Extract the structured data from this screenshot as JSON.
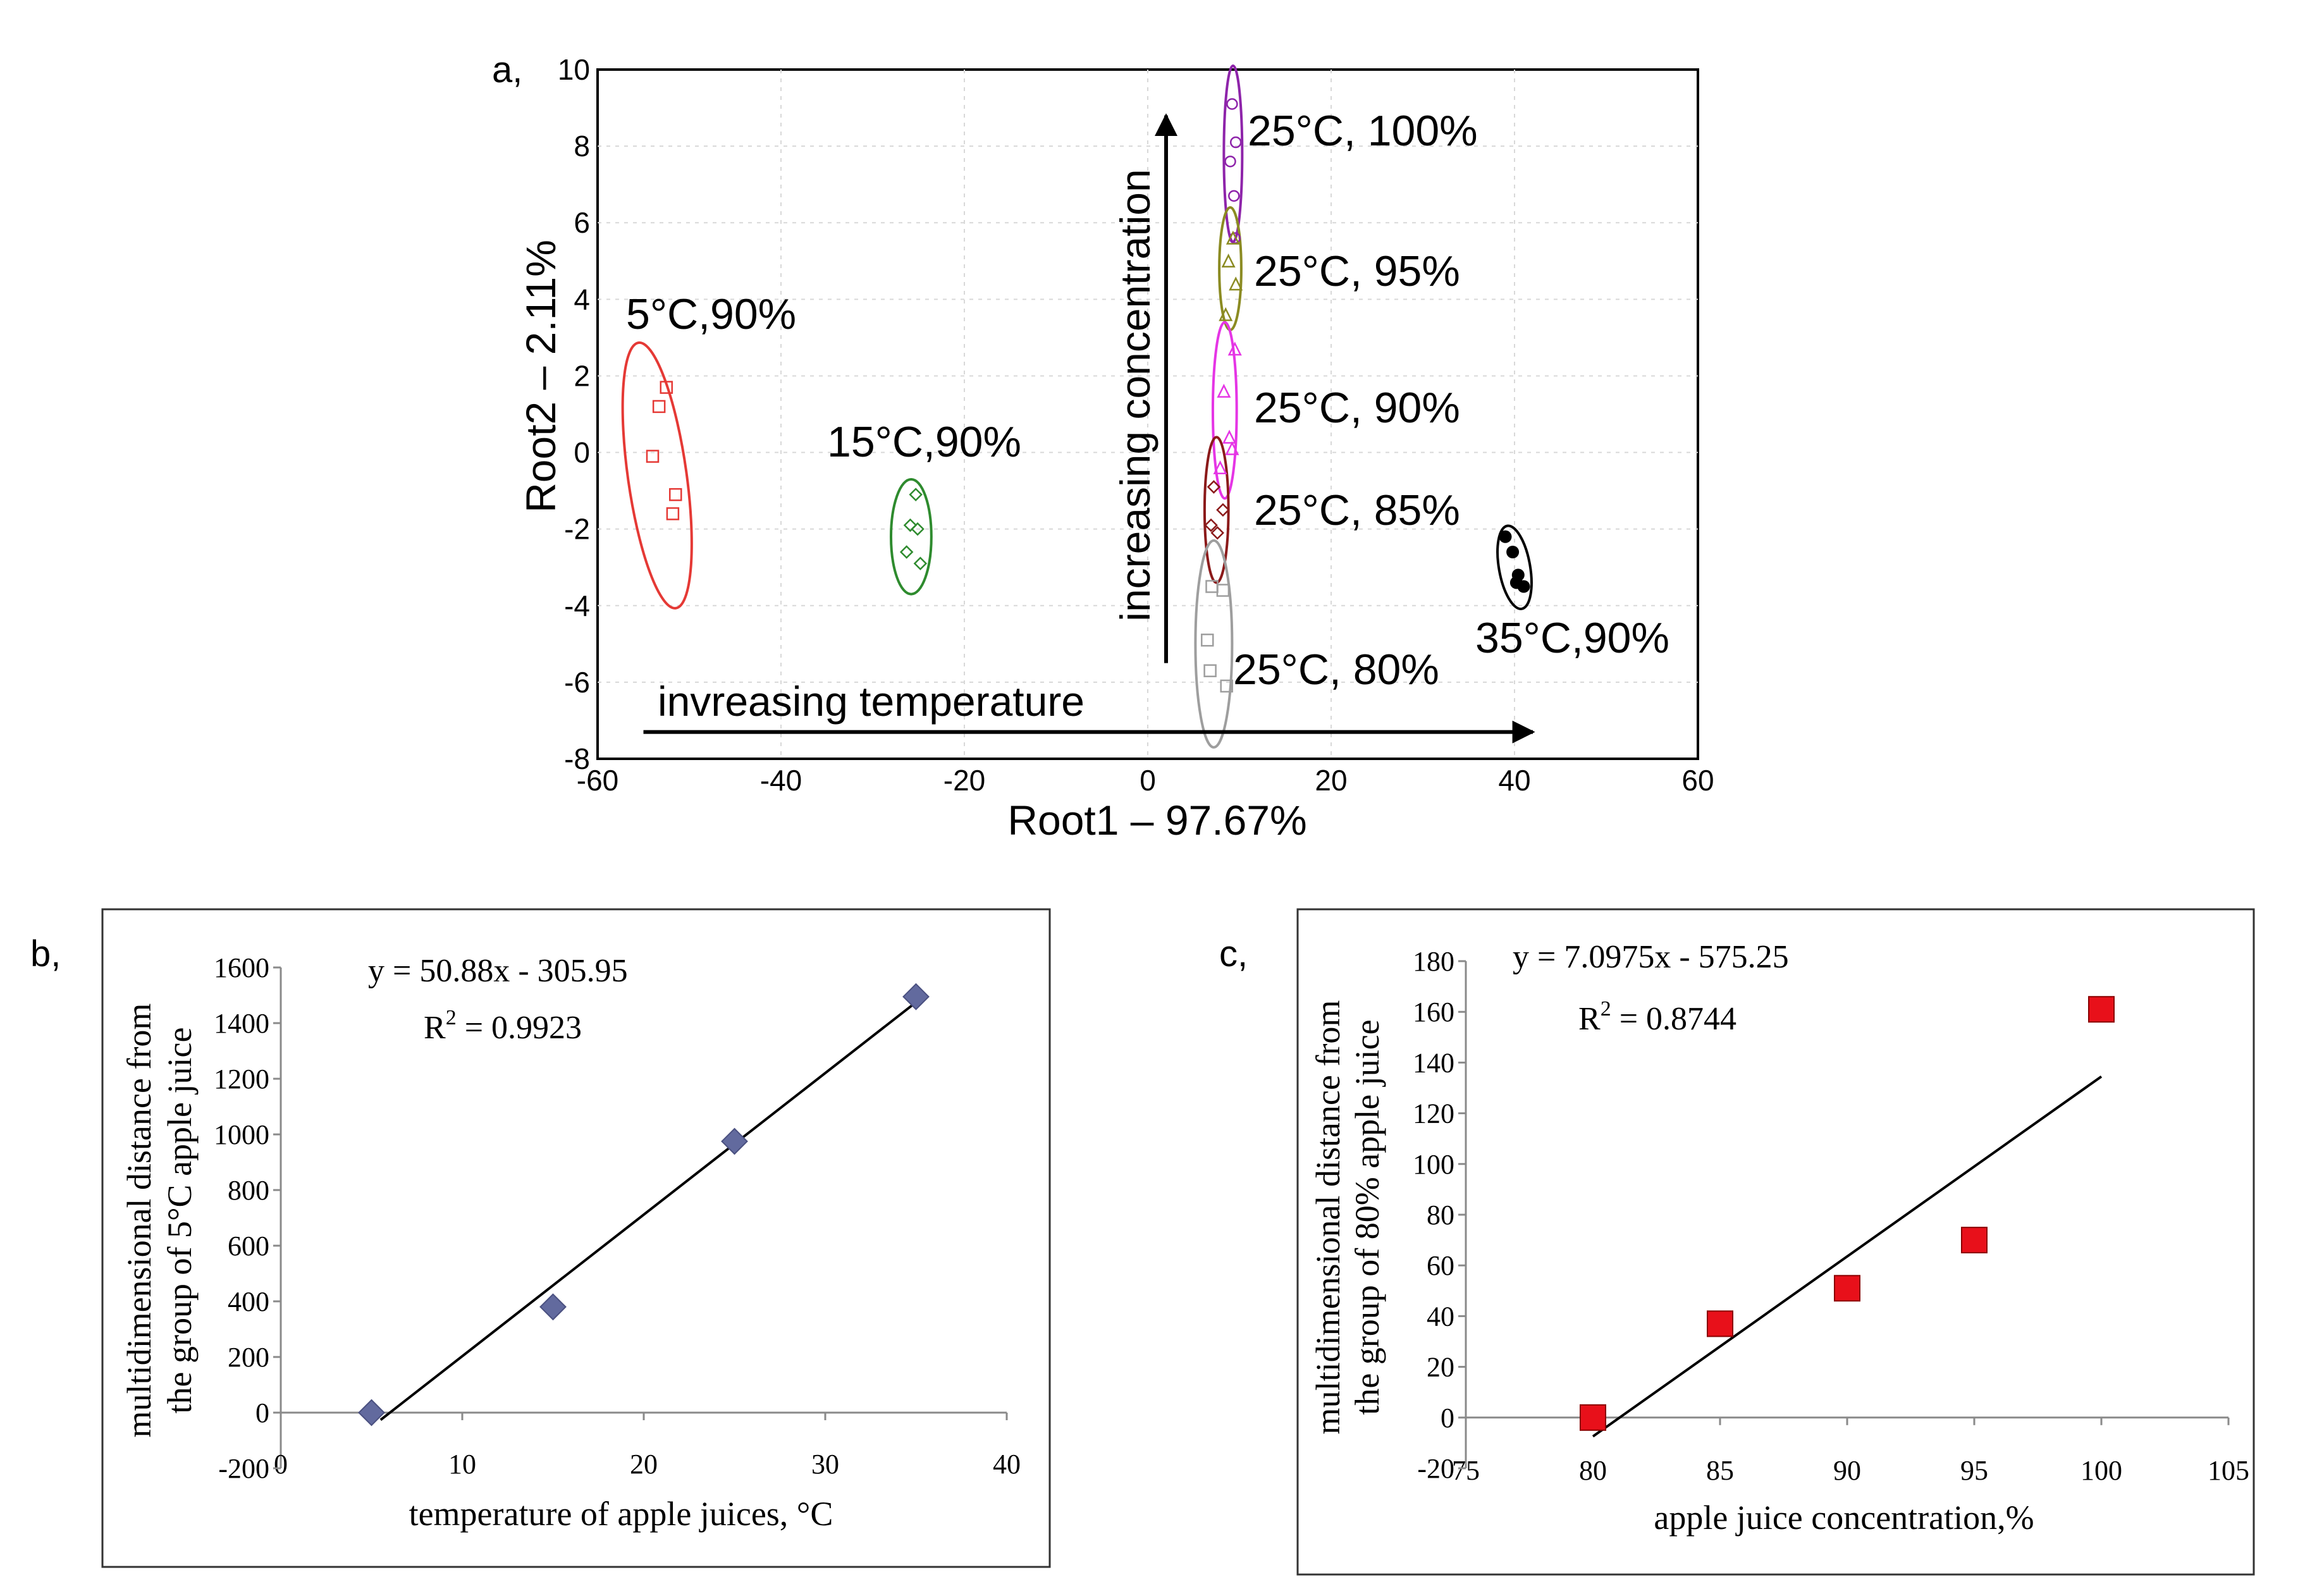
{
  "chart_data": [
    {
      "panel": "a,",
      "type": "scatter",
      "xlabel": "Root1 – 97.67%",
      "ylabel": "Root2 – 2.11%",
      "xlim": [
        -60,
        60
      ],
      "ylim": [
        -8,
        10
      ],
      "xticks": [
        -60,
        -40,
        -20,
        0,
        20,
        40,
        60
      ],
      "yticks": [
        -8,
        -6,
        -4,
        -2,
        0,
        2,
        4,
        6,
        8,
        10
      ],
      "grid": true,
      "groups": [
        {
          "label": "5°C,90%",
          "color": "#e53935",
          "marker": "square",
          "ellipse": {
            "cx": -53.5,
            "cy": -0.6,
            "rx": 3.2,
            "ry": 3.5
          },
          "points": [
            [
              -52.5,
              1.7
            ],
            [
              -53.3,
              1.2
            ],
            [
              -54.0,
              -0.1
            ],
            [
              -51.5,
              -1.1
            ],
            [
              -51.8,
              -1.6
            ]
          ]
        },
        {
          "label": "15°C,90%",
          "color": "#2e8b2e",
          "marker": "diamond",
          "ellipse": {
            "cx": -25.8,
            "cy": -2.2,
            "rx": 2.2,
            "ry": 1.5
          },
          "points": [
            [
              -25.3,
              -1.1
            ],
            [
              -25.9,
              -1.9
            ],
            [
              -26.3,
              -2.6
            ],
            [
              -25.1,
              -2.0
            ],
            [
              -24.8,
              -2.9
            ]
          ]
        },
        {
          "label": "25°C, 100%",
          "color": "#8e24aa",
          "marker": "circle",
          "ellipse": {
            "cx": 9.3,
            "cy": 7.8,
            "rx": 1.0,
            "ry": 2.3
          },
          "points": [
            [
              9.2,
              9.1
            ],
            [
              9.6,
              8.1
            ],
            [
              9.0,
              7.6
            ],
            [
              9.4,
              6.7
            ],
            [
              9.5,
              5.6
            ]
          ]
        },
        {
          "label": "25°C, 95%",
          "color": "#8b8b22",
          "marker": "triangle",
          "ellipse": {
            "cx": 9.0,
            "cy": 4.8,
            "rx": 1.2,
            "ry": 1.6
          },
          "points": [
            [
              9.3,
              5.6
            ],
            [
              8.8,
              5.0
            ],
            [
              9.6,
              4.4
            ],
            [
              8.5,
              3.6
            ]
          ]
        },
        {
          "label": "25°C, 90%",
          "color": "#e535e5",
          "marker": "triangle",
          "ellipse": {
            "cx": 8.4,
            "cy": 1.1,
            "rx": 1.3,
            "ry": 2.3
          },
          "points": [
            [
              9.5,
              2.7
            ],
            [
              8.3,
              1.6
            ],
            [
              8.9,
              0.4
            ],
            [
              7.9,
              -0.4
            ],
            [
              9.2,
              0.1
            ]
          ]
        },
        {
          "label": "25°C, 85%",
          "color": "#8b1a1a",
          "marker": "diamond",
          "ellipse": {
            "cx": 7.5,
            "cy": -1.5,
            "rx": 1.3,
            "ry": 1.9
          },
          "points": [
            [
              7.2,
              -0.9
            ],
            [
              8.2,
              -1.5
            ],
            [
              6.9,
              -1.9
            ],
            [
              7.6,
              -2.1
            ]
          ]
        },
        {
          "label": "25°C, 80%",
          "color": "#9e9e9e",
          "marker": "square",
          "ellipse": {
            "cx": 7.2,
            "cy": -5.0,
            "rx": 2.0,
            "ry": 2.7
          },
          "points": [
            [
              7.0,
              -3.5
            ],
            [
              8.2,
              -3.6
            ],
            [
              6.5,
              -4.9
            ],
            [
              6.8,
              -5.7
            ],
            [
              8.6,
              -6.1
            ]
          ]
        },
        {
          "label": "35°C,90%",
          "color": "#000000",
          "marker": "filled-circle",
          "ellipse": {
            "cx": 40.0,
            "cy": -3.0,
            "rx": 1.7,
            "ry": 1.1
          },
          "points": [
            [
              39.0,
              -2.2
            ],
            [
              39.8,
              -2.6
            ],
            [
              40.4,
              -3.2
            ],
            [
              40.2,
              -3.4
            ],
            [
              41.0,
              -3.5
            ]
          ]
        }
      ],
      "arrows": [
        {
          "label": "invreasing temperature",
          "from": [
            -55,
            -7.3
          ],
          "to": [
            42,
            -7.3
          ]
        },
        {
          "label": "increasing concentration",
          "from": [
            2,
            -5.5
          ],
          "to": [
            2,
            8.8
          ]
        }
      ]
    },
    {
      "panel": "b,",
      "type": "scatter",
      "xlabel": "temperature of apple juices, °C",
      "ylabel_lines": [
        "multidimensional distance from",
        "the group of 5°C apple juice"
      ],
      "xlim": [
        0,
        40
      ],
      "ylim": [
        -200,
        1600
      ],
      "xticks": [
        0,
        10,
        20,
        30,
        40
      ],
      "yticks": [
        -200,
        0,
        200,
        400,
        600,
        800,
        1000,
        1200,
        1400,
        1600
      ],
      "marker": "diamond",
      "marker_color": "#626a9e",
      "x": [
        5,
        15,
        25,
        35
      ],
      "y": [
        0,
        380,
        975,
        1495
      ],
      "trendline": {
        "slope": 50.88,
        "intercept": -305.95,
        "x_range": [
          5.5,
          35
        ]
      },
      "equation": "y = 50.88x - 305.95",
      "r2_label": "R",
      "r2_sup": "2",
      "r2_value": " = 0.9923"
    },
    {
      "panel": "c,",
      "type": "scatter",
      "xlabel": "apple juice concentration,%",
      "ylabel_lines": [
        "multidimensional distance from",
        "the group of 80% apple juice"
      ],
      "xlim": [
        75,
        105
      ],
      "ylim": [
        -20,
        180
      ],
      "xticks": [
        75,
        80,
        85,
        90,
        95,
        100,
        105
      ],
      "yticks": [
        -20,
        0,
        20,
        40,
        60,
        80,
        100,
        120,
        140,
        160,
        180
      ],
      "marker": "square",
      "marker_color": "#e8101a",
      "x": [
        80,
        85,
        90,
        95,
        100
      ],
      "y": [
        0,
        37,
        51,
        70,
        161
      ],
      "trendline": {
        "slope": 7.0975,
        "intercept": -575.25,
        "x_range": [
          80,
          100
        ]
      },
      "equation": "y = 7.0975x - 575.25",
      "r2_label": "R",
      "r2_sup": "2",
      "r2_value": " = 0.8744"
    }
  ]
}
